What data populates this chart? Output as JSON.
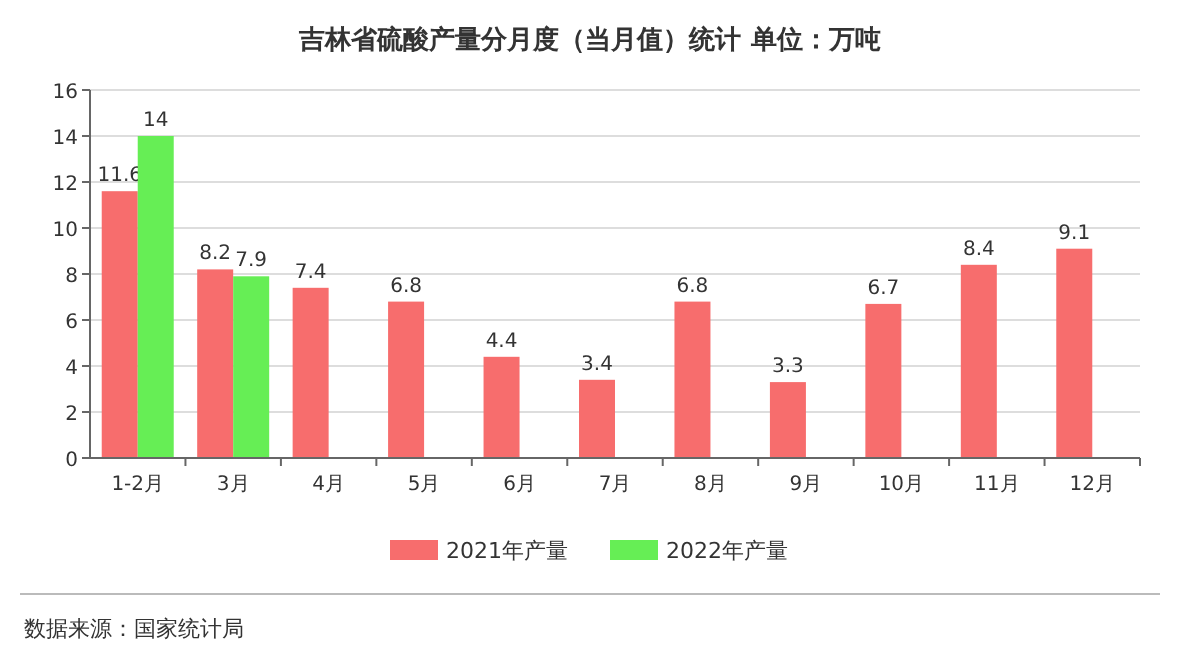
{
  "chart_data": {
    "type": "bar",
    "title": "吉林省硫酸产量分月度（当月值）统计 单位：万吨",
    "categories": [
      "1-2月",
      "3月",
      "4月",
      "5月",
      "6月",
      "7月",
      "8月",
      "9月",
      "10月",
      "11月",
      "12月"
    ],
    "series": [
      {
        "name": "2021年产量",
        "color": "#f76d6d",
        "values": [
          11.6,
          8.2,
          7.4,
          6.8,
          4.4,
          3.4,
          6.8,
          3.3,
          6.7,
          8.4,
          9.1
        ]
      },
      {
        "name": "2022年产量",
        "color": "#66ee55",
        "values": [
          14,
          7.9,
          null,
          null,
          null,
          null,
          null,
          null,
          null,
          null,
          null
        ]
      }
    ],
    "ylim": [
      0,
      16
    ],
    "yticks": [
      0,
      2,
      4,
      6,
      8,
      10,
      12,
      14,
      16
    ],
    "grid": "y",
    "legend": "bottom",
    "data_labels": true,
    "annotations": [
      "数据来源：国家统计局"
    ]
  }
}
